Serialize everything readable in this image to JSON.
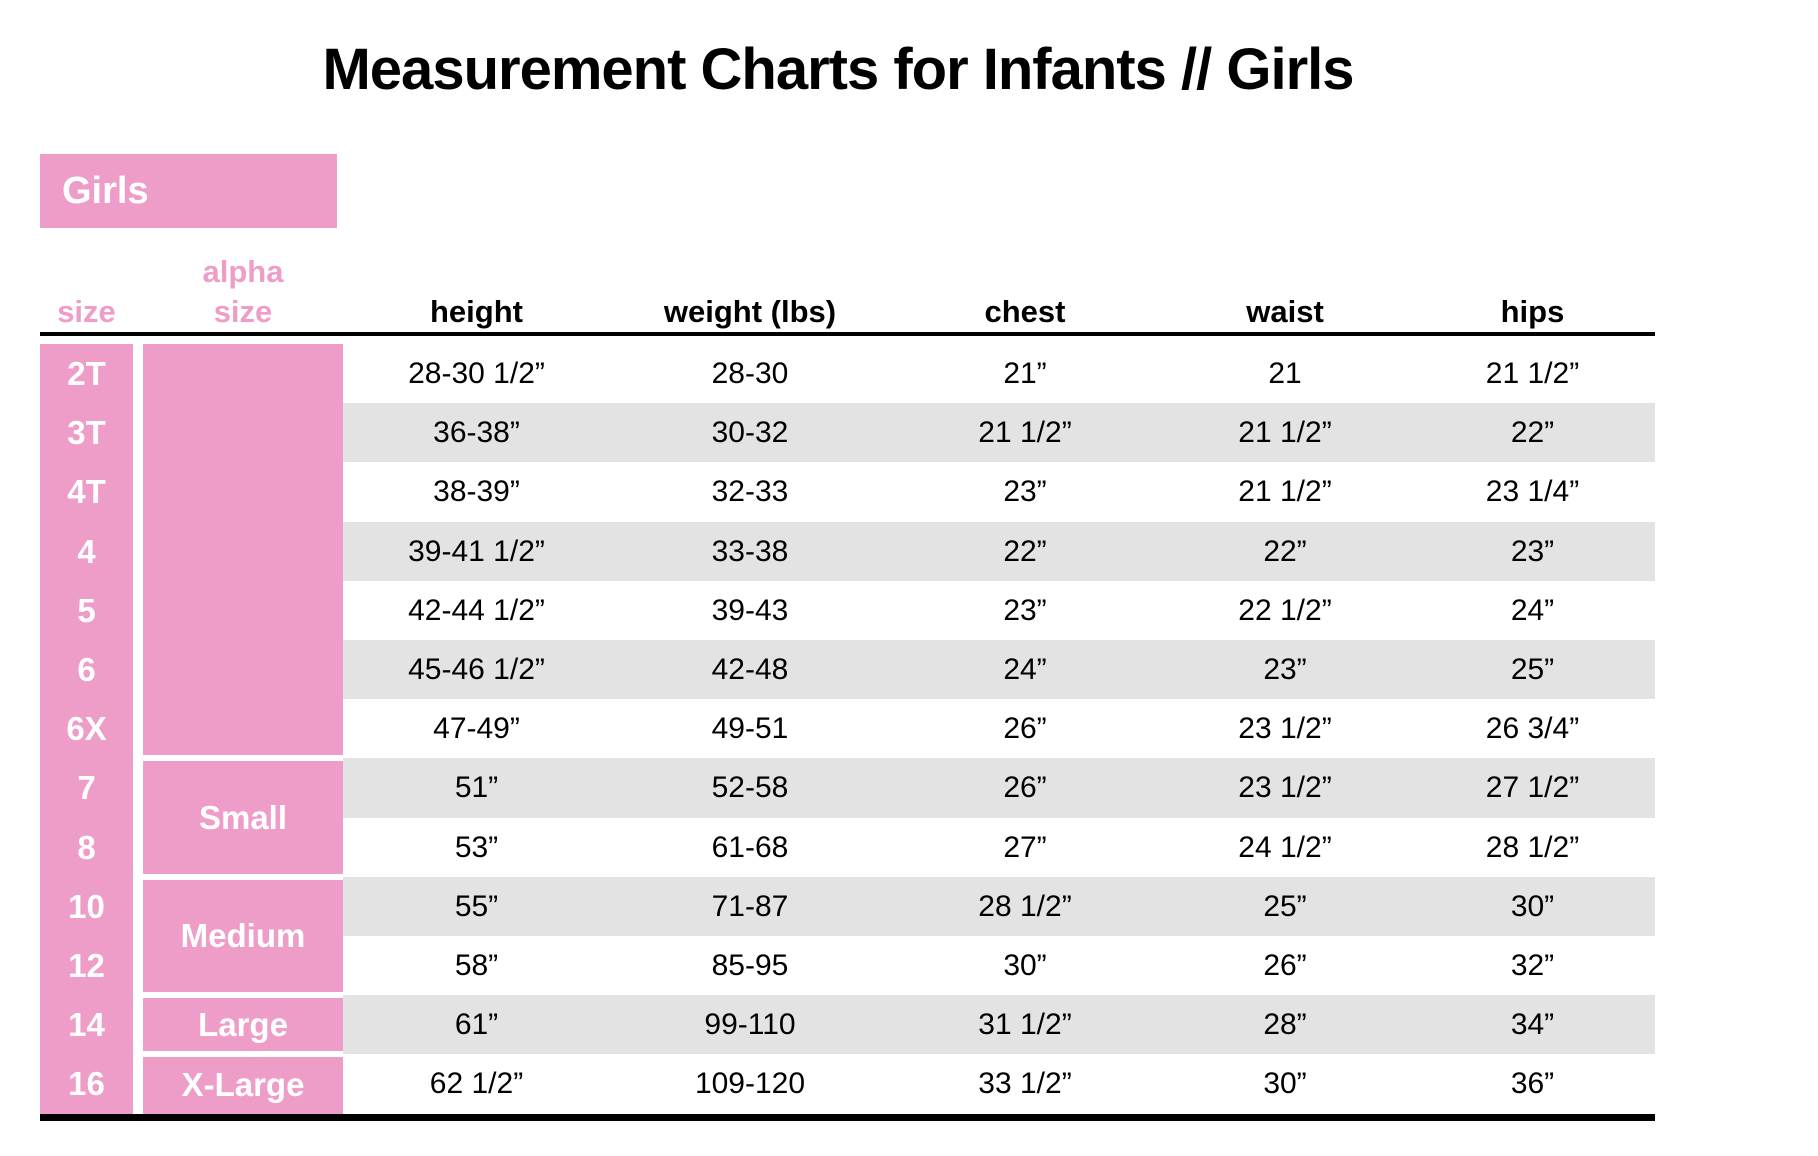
{
  "title": "Measurement Charts for Infants // Girls",
  "group_label": "Girls",
  "colors": {
    "pink": "#ee9dc8",
    "row_stripe": "#e3e3e3",
    "rule": "#000000"
  },
  "table": {
    "size_header": "size",
    "alpha_header": [
      "alpha",
      "size"
    ],
    "data_columns": [
      "height",
      "weight (lbs)",
      "chest",
      "waist",
      "hips"
    ],
    "alpha_groups": [
      {
        "label": "",
        "row_span": 7
      },
      {
        "label": "Small",
        "row_span": 2
      },
      {
        "label": "Medium",
        "row_span": 2
      },
      {
        "label": "Large",
        "row_span": 1
      },
      {
        "label": "X-Large",
        "row_span": 1
      }
    ],
    "rows": [
      {
        "size": "2T",
        "height": "28-30 1/2”",
        "weight": "28-30",
        "chest": "21”",
        "waist": "21",
        "hips": "21 1/2”"
      },
      {
        "size": "3T",
        "height": "36-38”",
        "weight": "30-32",
        "chest": "21 1/2”",
        "waist": "21 1/2”",
        "hips": "22”"
      },
      {
        "size": "4T",
        "height": "38-39”",
        "weight": "32-33",
        "chest": "23”",
        "waist": "21 1/2”",
        "hips": "23 1/4”"
      },
      {
        "size": "4",
        "height": "39-41 1/2”",
        "weight": "33-38",
        "chest": "22”",
        "waist": "22”",
        "hips": "23”"
      },
      {
        "size": "5",
        "height": "42-44 1/2”",
        "weight": "39-43",
        "chest": "23”",
        "waist": "22 1/2”",
        "hips": "24”"
      },
      {
        "size": "6",
        "height": "45-46 1/2”",
        "weight": "42-48",
        "chest": "24”",
        "waist": "23”",
        "hips": "25”"
      },
      {
        "size": "6X",
        "height": "47-49”",
        "weight": "49-51",
        "chest": "26”",
        "waist": "23 1/2”",
        "hips": "26 3/4”"
      },
      {
        "size": "7",
        "height": "51”",
        "weight": "52-58",
        "chest": "26”",
        "waist": "23 1/2”",
        "hips": "27 1/2”"
      },
      {
        "size": "8",
        "height": "53”",
        "weight": "61-68",
        "chest": "27”",
        "waist": "24 1/2”",
        "hips": "28 1/2”"
      },
      {
        "size": "10",
        "height": "55”",
        "weight": "71-87",
        "chest": "28 1/2”",
        "waist": "25”",
        "hips": "30”"
      },
      {
        "size": "12",
        "height": "58”",
        "weight": "85-95",
        "chest": "30”",
        "waist": "26”",
        "hips": "32”"
      },
      {
        "size": "14",
        "height": "61”",
        "weight": "99-110",
        "chest": "31 1/2”",
        "waist": "28”",
        "hips": "34”"
      },
      {
        "size": "16",
        "height": "62 1/2”",
        "weight": "109-120",
        "chest": "33 1/2”",
        "waist": "30”",
        "hips": "36”"
      }
    ]
  }
}
